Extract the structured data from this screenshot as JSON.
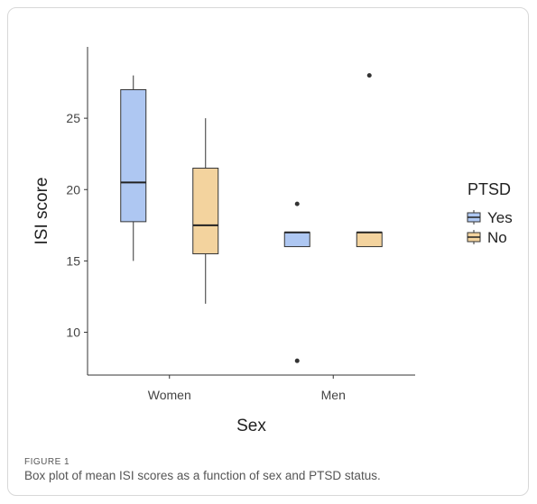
{
  "chart_data": {
    "type": "box",
    "xlabel": "Sex",
    "ylabel": "ISI score",
    "categories": [
      "Women",
      "Men"
    ],
    "ylim": [
      7,
      30
    ],
    "yticks": [
      10,
      15,
      20,
      25
    ],
    "legend": {
      "title": "PTSD",
      "placement": "right"
    },
    "series": [
      {
        "name": "Yes",
        "color": "#aec7f2",
        "boxes": [
          {
            "category": "Women",
            "min": 15,
            "q1": 17.75,
            "median": 20.5,
            "q3": 27,
            "max": 28,
            "outliers": []
          },
          {
            "category": "Men",
            "min": 16,
            "q1": 16,
            "median": 17,
            "q3": 17,
            "max": 17,
            "outliers": [
              19,
              8
            ]
          }
        ]
      },
      {
        "name": "No",
        "color": "#f3d39e",
        "boxes": [
          {
            "category": "Women",
            "min": 12,
            "q1": 15.5,
            "median": 17.5,
            "q3": 21.5,
            "max": 25,
            "outliers": []
          },
          {
            "category": "Men",
            "min": 16,
            "q1": 16,
            "median": 17,
            "q3": 17,
            "max": 17,
            "outliers": [
              28
            ]
          }
        ]
      }
    ]
  },
  "caption": {
    "label": "FIGURE 1",
    "text": "Box plot of mean ISI scores as a function of sex and PTSD status."
  }
}
